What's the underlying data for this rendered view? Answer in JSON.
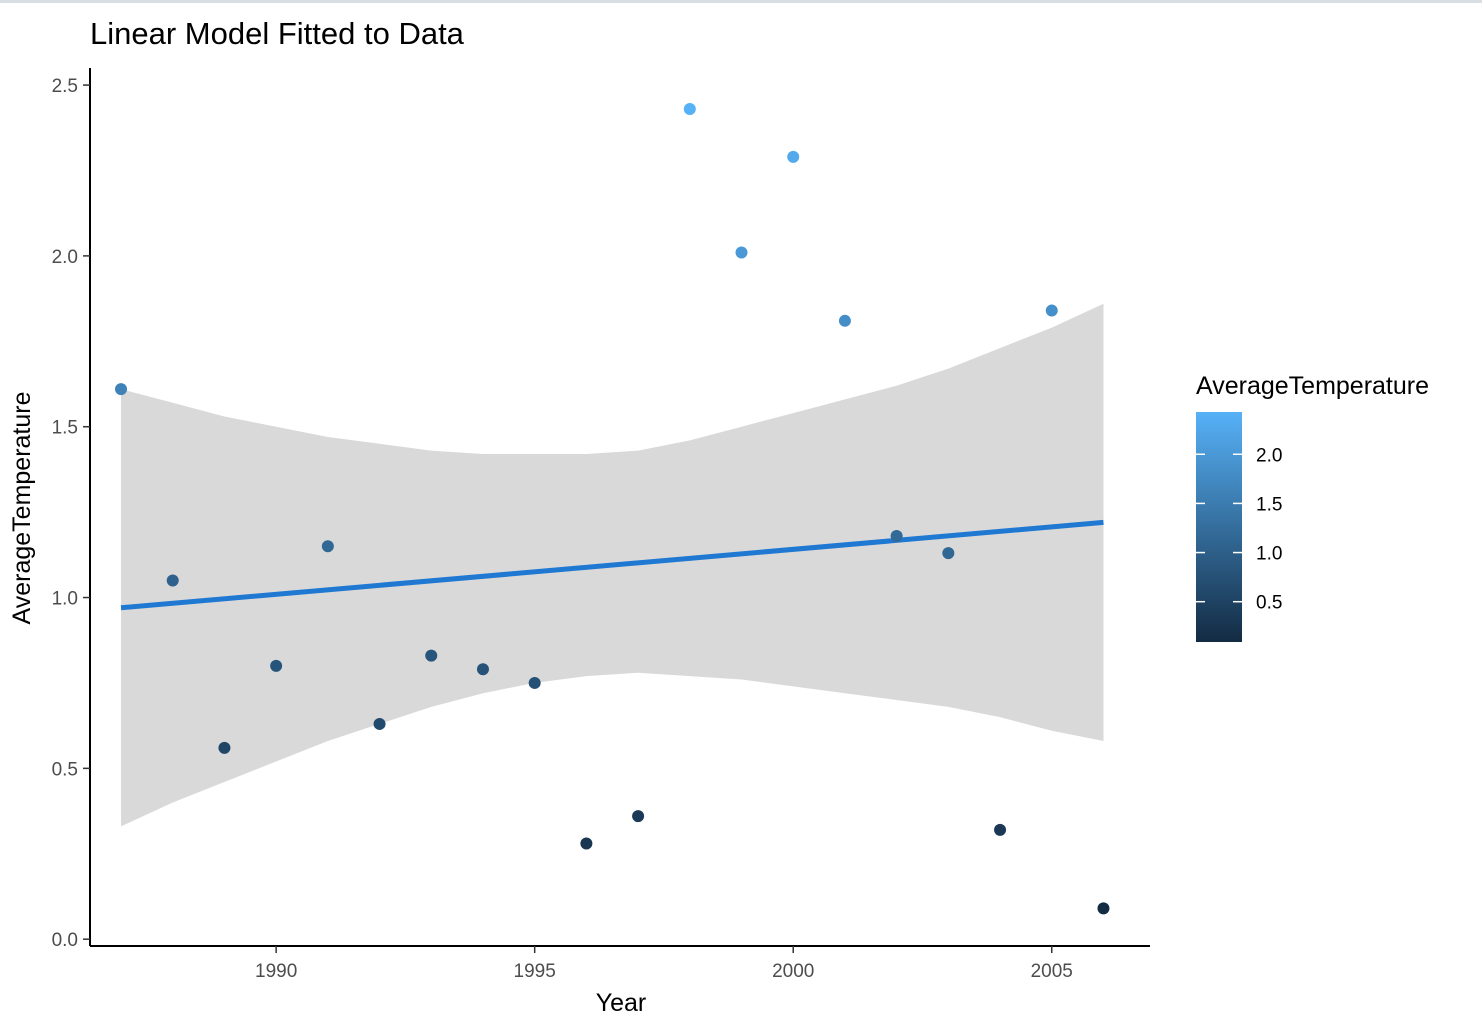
{
  "chart_data": {
    "type": "scatter",
    "title": "Linear Model Fitted to Data",
    "xlabel": "Year",
    "ylabel": "AverageTemperature",
    "xlim": [
      1986.4,
      2006.9
    ],
    "ylim": [
      -0.02,
      2.55
    ],
    "xticks": [
      1990,
      1995,
      2000,
      2005
    ],
    "yticks": [
      0.0,
      0.5,
      1.0,
      1.5,
      2.0,
      2.5
    ],
    "ytick_labels": [
      "0.0",
      "0.5",
      "1.0",
      "1.5",
      "2.0",
      "2.5"
    ],
    "grid": false,
    "points": [
      {
        "x": 1987,
        "y": 1.61
      },
      {
        "x": 1988,
        "y": 1.05
      },
      {
        "x": 1989,
        "y": 0.56
      },
      {
        "x": 1990,
        "y": 0.8
      },
      {
        "x": 1991,
        "y": 1.15
      },
      {
        "x": 1992,
        "y": 0.63
      },
      {
        "x": 1993,
        "y": 0.83
      },
      {
        "x": 1994,
        "y": 0.79
      },
      {
        "x": 1995,
        "y": 0.75
      },
      {
        "x": 1996,
        "y": 0.28
      },
      {
        "x": 1997,
        "y": 0.36
      },
      {
        "x": 1998,
        "y": 2.43
      },
      {
        "x": 1999,
        "y": 2.01
      },
      {
        "x": 2000,
        "y": 2.29
      },
      {
        "x": 2001,
        "y": 1.81
      },
      {
        "x": 2002,
        "y": 1.18
      },
      {
        "x": 2003,
        "y": 1.13
      },
      {
        "x": 2004,
        "y": 0.32
      },
      {
        "x": 2005,
        "y": 1.84
      },
      {
        "x": 2006,
        "y": 0.09
      }
    ],
    "fit_line": {
      "method": "lm",
      "color": "#1f78d1",
      "x": [
        1987,
        2006
      ],
      "y": [
        0.97,
        1.22
      ]
    },
    "confidence_band": {
      "color": "#d9d9d9",
      "x": [
        1987,
        1988,
        1989,
        1990,
        1991,
        1992,
        1993,
        1994,
        1995,
        1996,
        1997,
        1998,
        1999,
        2000,
        2001,
        2002,
        2003,
        2004,
        2005,
        2006
      ],
      "lower": [
        0.33,
        0.4,
        0.46,
        0.52,
        0.58,
        0.63,
        0.68,
        0.72,
        0.75,
        0.77,
        0.78,
        0.77,
        0.76,
        0.74,
        0.72,
        0.7,
        0.68,
        0.65,
        0.61,
        0.58
      ],
      "upper": [
        1.61,
        1.57,
        1.53,
        1.5,
        1.47,
        1.45,
        1.43,
        1.42,
        1.42,
        1.42,
        1.43,
        1.46,
        1.5,
        1.54,
        1.58,
        1.62,
        1.67,
        1.73,
        1.79,
        1.86
      ]
    },
    "legend": {
      "title": "AverageTemperature",
      "placement": "right",
      "type": "colorbar",
      "ticks": [
        2.0,
        1.5,
        1.0,
        0.5
      ],
      "tick_labels": [
        "2.0",
        "1.5",
        "1.0",
        "0.5"
      ],
      "range": [
        0.09,
        2.43
      ],
      "color_low": "#132b43",
      "color_high": "#56b1f7"
    }
  }
}
